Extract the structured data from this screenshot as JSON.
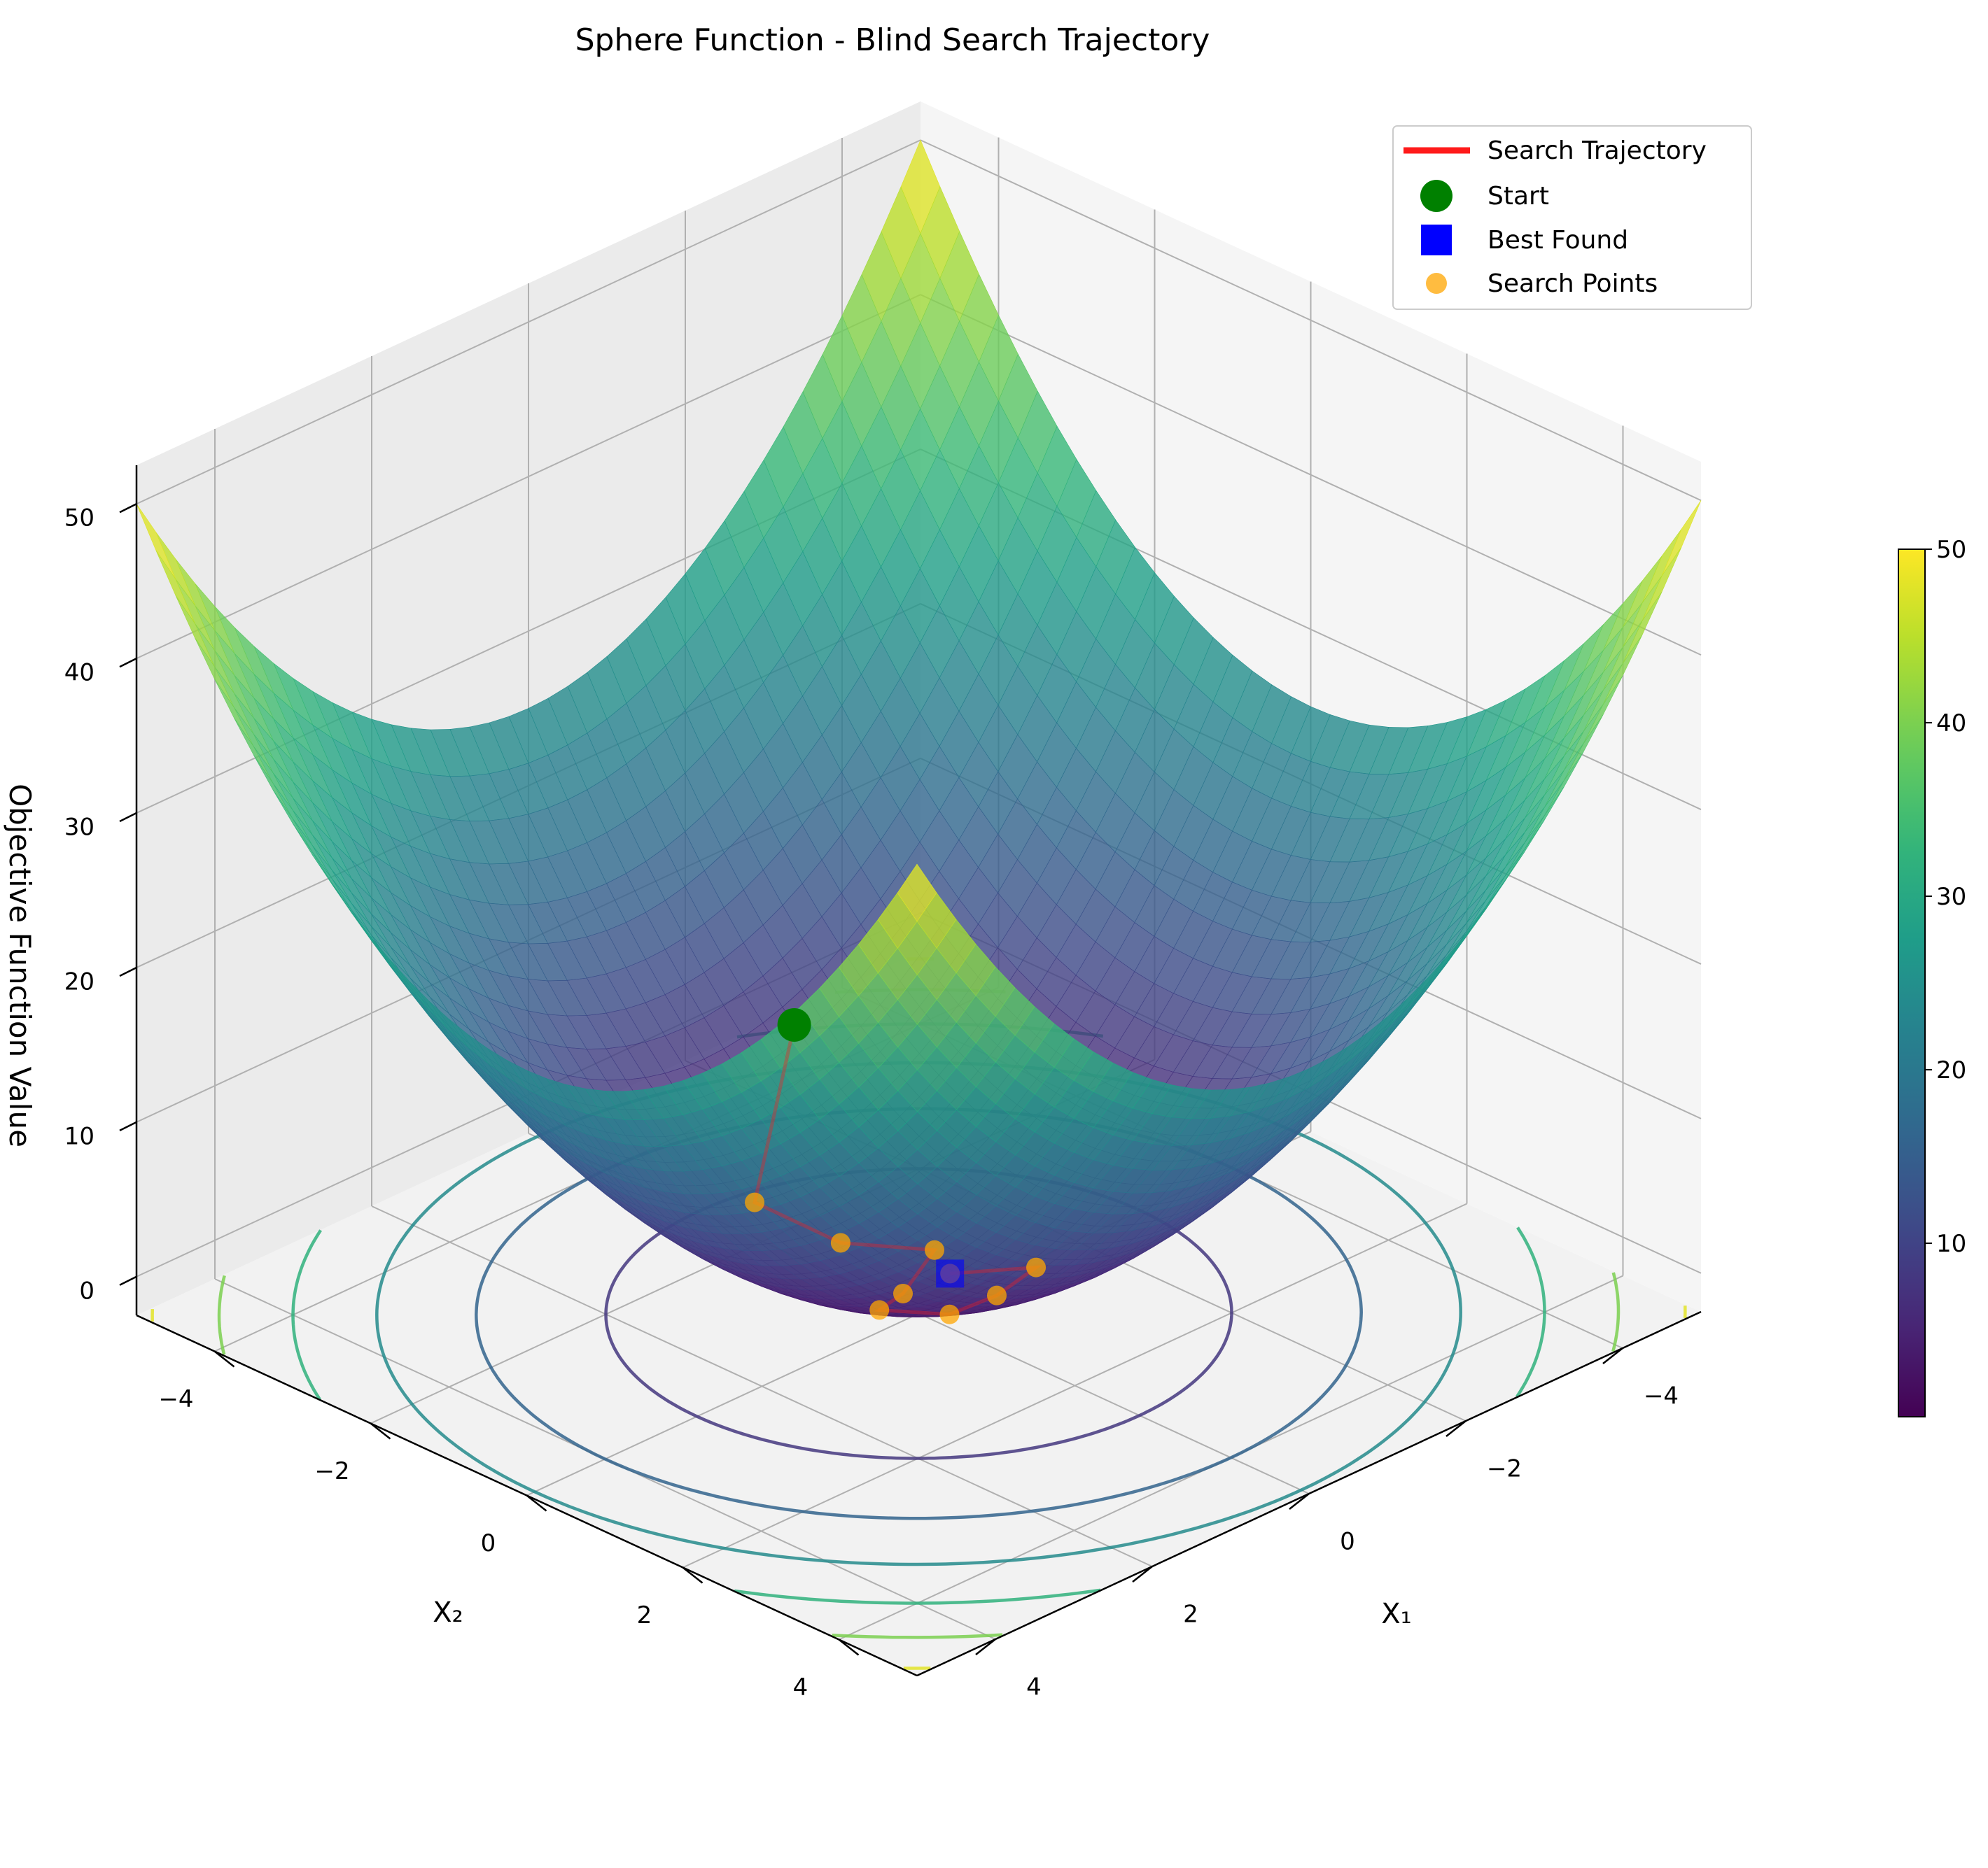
{
  "chart_data": {
    "type": "surface3d",
    "title": "Sphere Function - Blind Search Trajectory",
    "function": "f(x1, x2) = x1^2 + x2^2",
    "xlabel": "X₁",
    "ylabel": "X₂",
    "zlabel": "Objective Function Value",
    "xlim": [
      -5,
      5
    ],
    "ylim": [
      -5,
      5
    ],
    "zlim": [
      -2.5,
      52.5
    ],
    "x_ticks": [
      "−4",
      "−2",
      "0",
      "2",
      "4"
    ],
    "y_ticks": [
      "−4",
      "−2",
      "0",
      "2",
      "4"
    ],
    "z_ticks": [
      "0",
      "10",
      "20",
      "30",
      "40",
      "50"
    ],
    "colormap": "viridis",
    "colorbar": {
      "range": [
        0,
        50
      ],
      "ticks": [
        "10",
        "20",
        "30",
        "40",
        "50"
      ]
    },
    "contour_levels": [
      8,
      16,
      24,
      32,
      40,
      48
    ],
    "colors": {
      "trajectory": "#ff1a1a",
      "start": "#008000",
      "best": "#0000ff",
      "points": "#ffa500"
    },
    "legend": {
      "position": "top-right",
      "entries": [
        "Search Trajectory",
        "Start",
        "Best Found",
        "Search Points"
      ]
    },
    "search_points": [
      {
        "x1": -1.0,
        "x2": -2.6,
        "f": 7.76
      },
      {
        "x1": 0.6,
        "x2": -1.5,
        "f": 2.61
      },
      {
        "x1": 0.2,
        "x2": -0.8,
        "f": 0.68
      },
      {
        "x1": -0.4,
        "x2": -0.2,
        "f": 0.2
      },
      {
        "x1": 0.4,
        "x2": 0.2,
        "f": 0.2
      },
      {
        "x1": 1.0,
        "x2": 0.5,
        "f": 1.25
      },
      {
        "x1": 1.2,
        "x2": 1.6,
        "f": 4.0
      },
      {
        "x1": 0.0,
        "x2": 1.0,
        "f": 1.0
      },
      {
        "x1": -0.6,
        "x2": 0.9,
        "f": 1.17
      },
      {
        "x1": -0.2,
        "x2": 0.2,
        "f": 0.08
      }
    ],
    "start": {
      "x1": -1.0,
      "x2": -2.6
    },
    "best": {
      "x1": -0.2,
      "x2": 0.2
    }
  }
}
